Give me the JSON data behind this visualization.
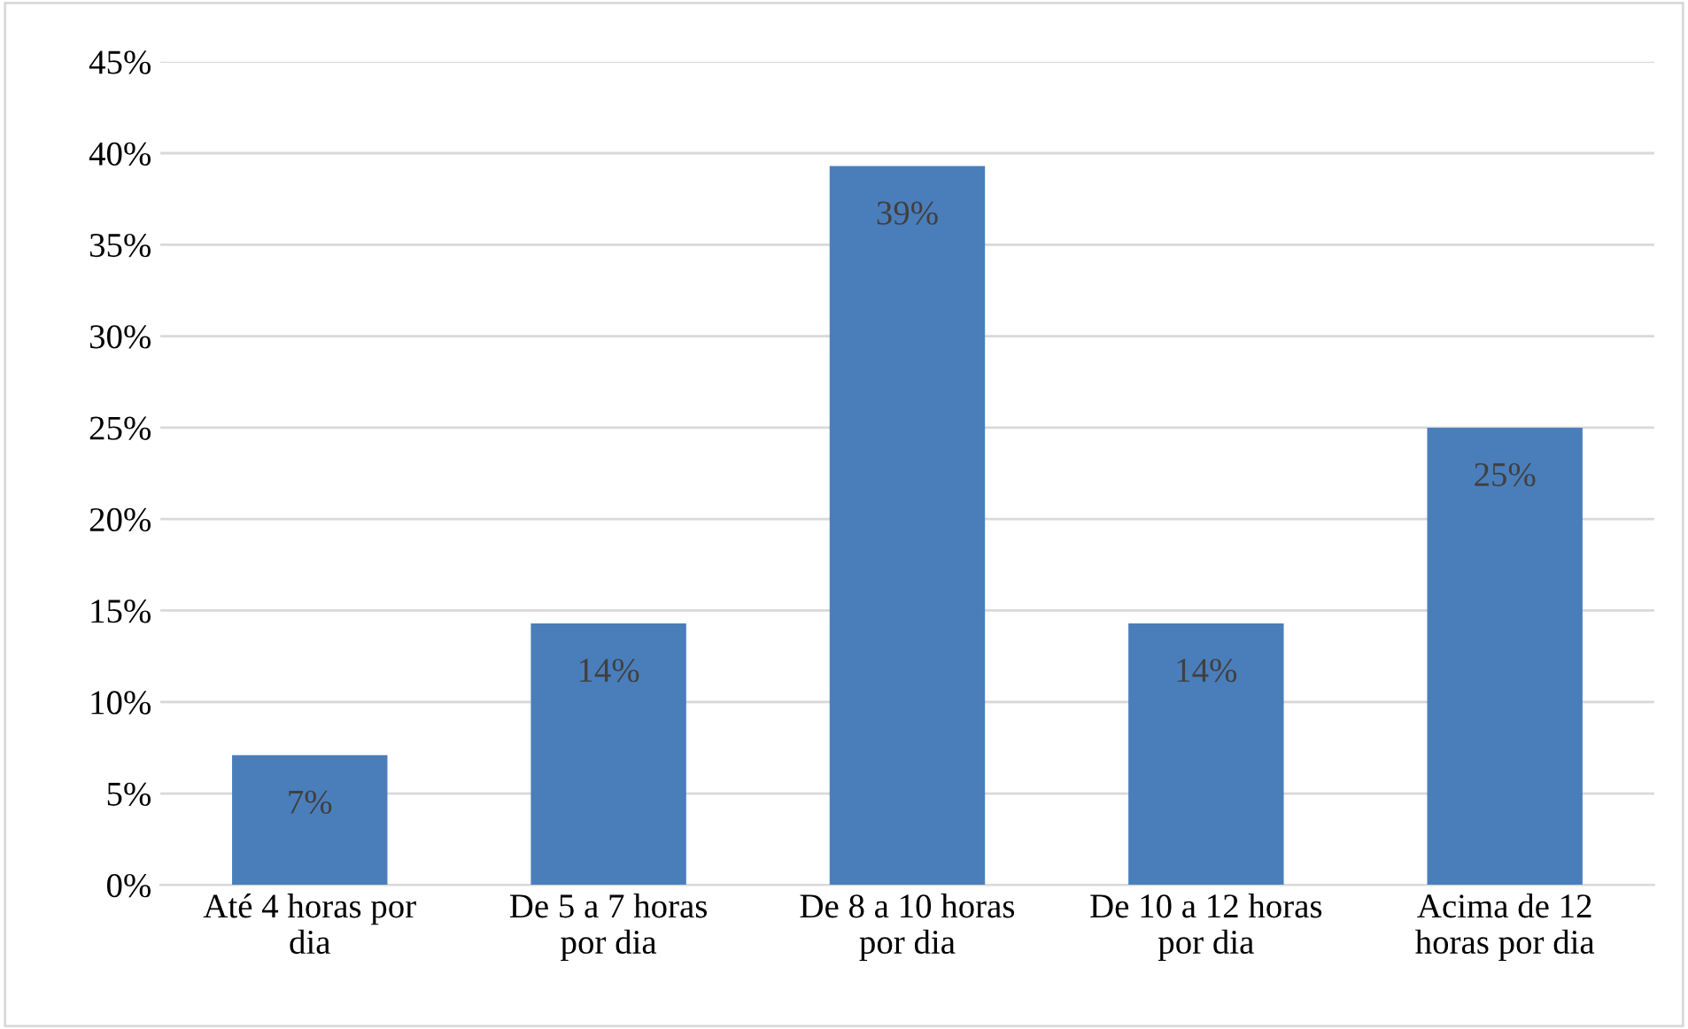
{
  "chart_data": {
    "type": "bar",
    "categories": [
      "Até 4 horas por\ndia",
      "De 5 a 7 horas\npor dia",
      "De 8 a 10 horas\npor dia",
      "De 10 a 12 horas\npor dia",
      "Acima de 12\nhoras por dia"
    ],
    "values": [
      7.1,
      14.3,
      39.3,
      14.3,
      25
    ],
    "value_labels": [
      "7%",
      "14%",
      "39%",
      "14%",
      "25%"
    ],
    "color": "#4a7ebb",
    "ylim": [
      0,
      45
    ],
    "yticks": [
      {
        "value": 0,
        "label": "0%"
      },
      {
        "value": 5,
        "label": "5%"
      },
      {
        "value": 10,
        "label": "10%"
      },
      {
        "value": 15,
        "label": "15%"
      },
      {
        "value": 20,
        "label": "20%"
      },
      {
        "value": 25,
        "label": "25%"
      },
      {
        "value": 30,
        "label": "30%"
      },
      {
        "value": 35,
        "label": "35%"
      },
      {
        "value": 40,
        "label": "40%"
      },
      {
        "value": 45,
        "label": "45%"
      }
    ],
    "grid": "y",
    "legend": false
  }
}
